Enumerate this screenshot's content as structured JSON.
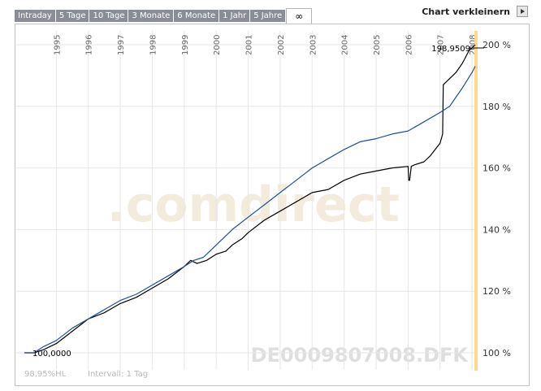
{
  "tabs": [
    "Intraday",
    "5 Tage",
    "10 Tage",
    "3 Monate",
    "6 Monate",
    "1 Jahr",
    "5 Jahre",
    "∞"
  ],
  "active_tab_index": 7,
  "shrink_label": "Chart verkleinern",
  "watermark_logo": ".comdirect",
  "watermark_isin": "DE0009807008.DFK",
  "footer": {
    "left": "98,95%HL",
    "interval": "Intervall: 1 Tag"
  },
  "colors": {
    "black_series": "#000000",
    "blue_series": "#1f4f97",
    "highlight": "#ffd98a",
    "grid": "#e6e6e6",
    "tab_bg": "#8a8d96"
  },
  "chart_data": {
    "type": "line",
    "x_tick_labels": [
      "1995",
      "1996",
      "1997",
      "1998",
      "1999",
      "2000",
      "2001",
      "2002",
      "2003",
      "2004",
      "2005",
      "2006",
      "2007",
      "2008"
    ],
    "y_tick_labels": [
      "100 %",
      "120 %",
      "140 %",
      "160 %",
      "180 %",
      "200 %"
    ],
    "ylim": [
      100,
      200
    ],
    "xlim": [
      1994.0,
      2008.15
    ],
    "start_label": "100,0000",
    "last_label": "198,9509",
    "series": [
      {
        "color": "#000000",
        "x": [
          1994.0,
          1994.3,
          1994.6,
          1995.0,
          1995.5,
          1996.0,
          1996.5,
          1997.0,
          1997.5,
          1998.0,
          1998.5,
          1999.0,
          1999.2,
          1999.4,
          1999.7,
          2000.0,
          2000.3,
          2000.5,
          2000.8,
          2001.0,
          2001.5,
          2002.0,
          2002.5,
          2003.0,
          2003.5,
          2004.0,
          2004.5,
          2005.0,
          2005.5,
          2006.0,
          2006.02,
          2006.05,
          2006.1,
          2006.2,
          2006.5,
          2006.7,
          2007.0,
          2007.08,
          2007.1,
          2007.3,
          2007.5,
          2007.7,
          2007.9,
          2008.1
        ],
        "y": [
          100,
          100,
          101,
          103,
          107,
          111,
          113,
          116,
          118,
          121,
          124,
          128,
          130,
          129,
          130,
          132,
          133,
          135,
          137,
          139,
          143,
          146,
          149,
          152,
          153,
          156,
          158,
          159,
          160,
          160.5,
          156,
          156,
          160.5,
          161,
          162,
          164,
          168,
          171,
          187,
          189,
          191,
          194,
          198,
          200
        ]
      },
      {
        "color": "#1f4f97",
        "x": [
          1994.0,
          1994.3,
          1994.6,
          1995.0,
          1995.5,
          1996.0,
          1996.5,
          1997.0,
          1997.5,
          1998.0,
          1998.5,
          1999.0,
          1999.3,
          1999.6,
          2000.0,
          2000.5,
          2001.0,
          2001.5,
          2002.0,
          2002.5,
          2003.0,
          2003.5,
          2004.0,
          2004.5,
          2005.0,
          2005.5,
          2006.0,
          2006.5,
          2007.0,
          2007.3,
          2007.5,
          2007.7,
          2008.0,
          2008.1
        ],
        "y": [
          100,
          100,
          102,
          104,
          108,
          111,
          114,
          117,
          119,
          122,
          125,
          128,
          130,
          131,
          135,
          140,
          144,
          148,
          152,
          156,
          160,
          163,
          166,
          168.5,
          169.5,
          171,
          172,
          175,
          178,
          180,
          183,
          186,
          191,
          193
        ]
      }
    ]
  }
}
